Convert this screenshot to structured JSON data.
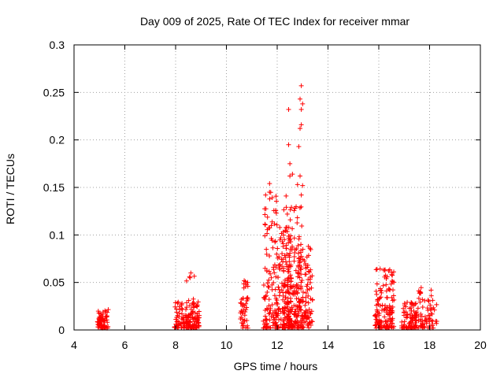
{
  "chart_data": {
    "type": "scatter",
    "title": "Day 009 of 2025, Rate Of TEC Index for receiver mmar",
    "xlabel": "GPS time / hours",
    "ylabel": "ROTI / TECUs",
    "xlim": [
      4,
      20
    ],
    "ylim": [
      0,
      0.3
    ],
    "xticks": [
      4,
      6,
      8,
      10,
      12,
      14,
      16,
      18,
      20
    ],
    "yticks": [
      0,
      0.05,
      0.1,
      0.15,
      0.2,
      0.25,
      0.3
    ],
    "xtick_labels": [
      "4",
      "6",
      "8",
      "10",
      "12",
      "14",
      "16",
      "18",
      "20"
    ],
    "ytick_labels": [
      "0",
      "0.05",
      "0.1",
      "0.15",
      "0.2",
      "0.25",
      "0.3"
    ],
    "grid": true,
    "marker": "+",
    "color": "#ff0000",
    "series": [
      {
        "name": "ROTI",
        "clusters": [
          {
            "x": [
              4.9,
              5.35
            ],
            "ymax": 0.022,
            "n": 70
          },
          {
            "x": [
              7.95,
              8.95
            ],
            "ymax": 0.03,
            "n": 120
          },
          {
            "x": [
              8.4,
              8.75
            ],
            "ymax": 0.06,
            "n": 30
          },
          {
            "x": [
              10.55,
              10.85
            ],
            "ymax": 0.054,
            "n": 45
          },
          {
            "x": [
              11.45,
              12.0
            ],
            "ymax": 0.155,
            "n": 110
          },
          {
            "x": [
              11.9,
              12.6
            ],
            "ymax": 0.11,
            "n": 150
          },
          {
            "x": [
              12.25,
              13.0
            ],
            "ymax": 0.13,
            "n": 160
          },
          {
            "x": [
              12.75,
              13.4
            ],
            "ymax": 0.09,
            "n": 110
          },
          {
            "x": [
              15.85,
              16.6
            ],
            "ymax": 0.065,
            "n": 140
          },
          {
            "x": [
              16.9,
              17.5
            ],
            "ymax": 0.03,
            "n": 70
          },
          {
            "x": [
              17.3,
              18.35
            ],
            "ymax": 0.045,
            "n": 90
          }
        ],
        "points": [
          [
            12.95,
            0.257
          ],
          [
            12.9,
            0.243
          ],
          [
            13.0,
            0.238
          ],
          [
            12.95,
            0.232
          ],
          [
            12.45,
            0.232
          ],
          [
            12.95,
            0.216
          ],
          [
            12.9,
            0.212
          ],
          [
            12.45,
            0.195
          ],
          [
            12.85,
            0.193
          ],
          [
            12.5,
            0.175
          ],
          [
            12.6,
            0.164
          ],
          [
            12.5,
            0.162
          ],
          [
            12.9,
            0.162
          ],
          [
            12.8,
            0.153
          ],
          [
            13.0,
            0.152
          ],
          [
            11.7,
            0.154
          ],
          [
            12.95,
            0.142
          ],
          [
            12.35,
            0.141
          ],
          [
            12.7,
            0.128
          ],
          [
            8.6,
            0.06
          ]
        ]
      }
    ]
  }
}
